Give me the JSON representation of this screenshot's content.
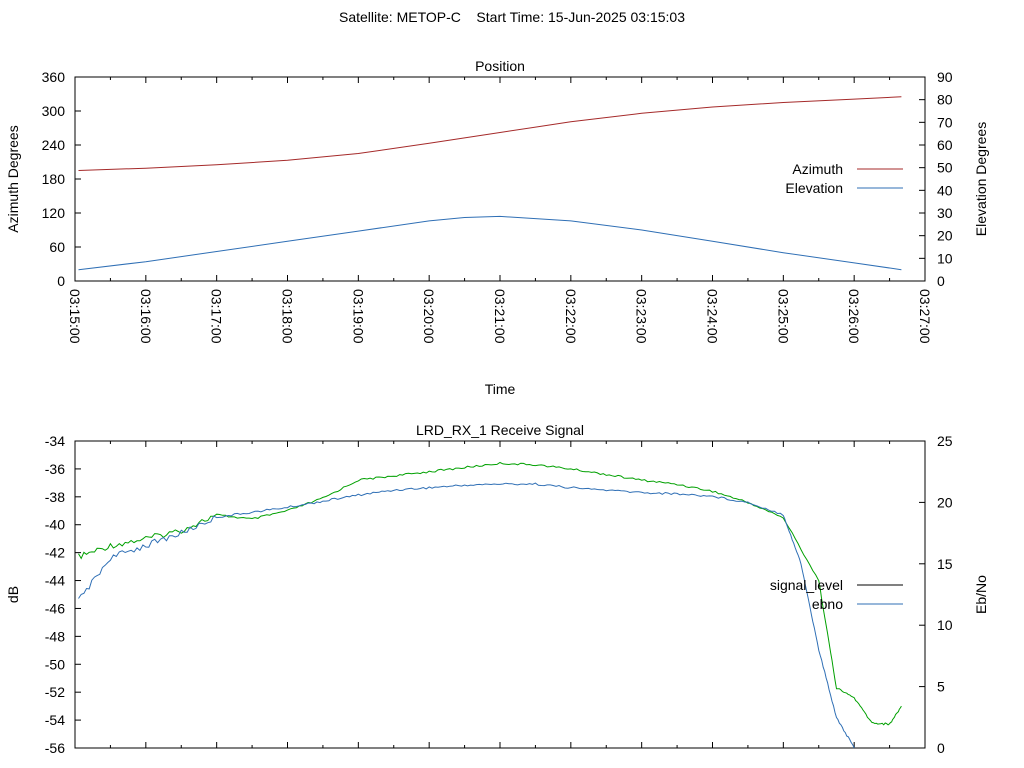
{
  "page": {
    "title": "Satellite: METOP-C    Start Time: 15-Jun-2025 03:15:03"
  },
  "colors": {
    "azimuth": "#a52a2a",
    "elevation": "#2f6fb5",
    "signal_green": "#00a000",
    "signal_red": "#c0392b",
    "ebno": "#2f6fb5",
    "axis": "#000000"
  },
  "chart_data": [
    {
      "type": "line",
      "title": "Position",
      "xlabel": "Time",
      "ylabel": "Azimuth Degrees",
      "y2label": "Elevation Degrees",
      "x_ticks": [
        "03:15:00",
        "03:16:00",
        "03:17:00",
        "03:18:00",
        "03:19:00",
        "03:20:00",
        "03:21:00",
        "03:22:00",
        "03:23:00",
        "03:24:00",
        "03:25:00",
        "03:26:00",
        "03:27:00"
      ],
      "xlim": [
        "03:15:00",
        "03:27:00"
      ],
      "ylim": [
        0,
        360
      ],
      "y_ticks": [
        0,
        60,
        120,
        180,
        240,
        300,
        360
      ],
      "y2lim": [
        0,
        90
      ],
      "y2_ticks": [
        0,
        10,
        20,
        30,
        40,
        50,
        60,
        70,
        80,
        90
      ],
      "legend_position": "right",
      "series": [
        {
          "name": "Azimuth",
          "axis": "left",
          "x": [
            "03:15:03",
            "03:16:00",
            "03:17:00",
            "03:18:00",
            "03:19:00",
            "03:20:00",
            "03:21:00",
            "03:22:00",
            "03:23:00",
            "03:24:00",
            "03:25:00",
            "03:26:00",
            "03:26:40"
          ],
          "values": [
            195,
            199,
            205,
            213,
            225,
            243,
            262,
            281,
            296,
            307,
            315,
            321,
            325
          ]
        },
        {
          "name": "Elevation",
          "axis": "right",
          "x": [
            "03:15:03",
            "03:16:00",
            "03:17:00",
            "03:18:00",
            "03:19:00",
            "03:20:00",
            "03:20:30",
            "03:21:00",
            "03:22:00",
            "03:23:00",
            "03:24:00",
            "03:25:00",
            "03:26:00",
            "03:26:40"
          ],
          "values": [
            5,
            8.5,
            13,
            17.5,
            22,
            26.5,
            28,
            28.5,
            26.5,
            22.5,
            17.5,
            12.5,
            8,
            5
          ]
        }
      ]
    },
    {
      "type": "line",
      "title": "LRD_RX_1 Receive Signal",
      "xlabel": "",
      "ylabel": "dB",
      "y2label": "Eb/No",
      "xlim": [
        "03:15:00",
        "03:27:00"
      ],
      "ylim": [
        -56,
        -34
      ],
      "y_ticks": [
        -56,
        -54,
        -52,
        -50,
        -48,
        -46,
        -44,
        -42,
        -40,
        -38,
        -36,
        -34
      ],
      "y2lim": [
        0,
        25
      ],
      "y2_ticks": [
        0,
        5,
        10,
        15,
        20,
        25
      ],
      "legend_position": "right",
      "series": [
        {
          "name": "signal_level",
          "axis": "left",
          "x": [
            "03:15:03",
            "03:15:30",
            "03:16:00",
            "03:16:30",
            "03:17:00",
            "03:17:30",
            "03:18:00",
            "03:18:30",
            "03:19:00",
            "03:19:30",
            "03:20:00",
            "03:20:30",
            "03:21:00",
            "03:21:30",
            "03:22:00",
            "03:22:30",
            "03:23:00",
            "03:23:30",
            "03:24:00",
            "03:24:30",
            "03:25:00",
            "03:25:30",
            "03:25:45",
            "03:26:00",
            "03:26:15",
            "03:26:30",
            "03:26:40"
          ],
          "values": [
            -42.3,
            -41.5,
            -41.0,
            -40.4,
            -39.3,
            -39.6,
            -39.0,
            -38.1,
            -36.8,
            -36.5,
            -36.2,
            -35.9,
            -35.6,
            -35.7,
            -36.0,
            -36.4,
            -36.8,
            -37.1,
            -37.6,
            -38.4,
            -39.5,
            -44.0,
            -51.7,
            -52.4,
            -54.2,
            -54.3,
            -53.0
          ]
        },
        {
          "name": "ebno",
          "axis": "right",
          "x": [
            "03:15:03",
            "03:15:30",
            "03:16:00",
            "03:16:30",
            "03:17:00",
            "03:17:30",
            "03:18:00",
            "03:18:30",
            "03:19:00",
            "03:19:30",
            "03:20:00",
            "03:20:30",
            "03:21:00",
            "03:21:30",
            "03:22:00",
            "03:22:30",
            "03:23:00",
            "03:23:30",
            "03:24:00",
            "03:24:30",
            "03:25:00",
            "03:25:15",
            "03:25:30",
            "03:25:45",
            "03:26:00"
          ],
          "values": [
            12.0,
            15.5,
            16.5,
            17.5,
            18.8,
            19.2,
            19.6,
            20.1,
            20.6,
            21.0,
            21.2,
            21.4,
            21.5,
            21.5,
            21.2,
            21.0,
            20.8,
            20.7,
            20.5,
            20.0,
            19.0,
            15.0,
            8.0,
            2.5,
            0.0
          ]
        }
      ]
    }
  ]
}
